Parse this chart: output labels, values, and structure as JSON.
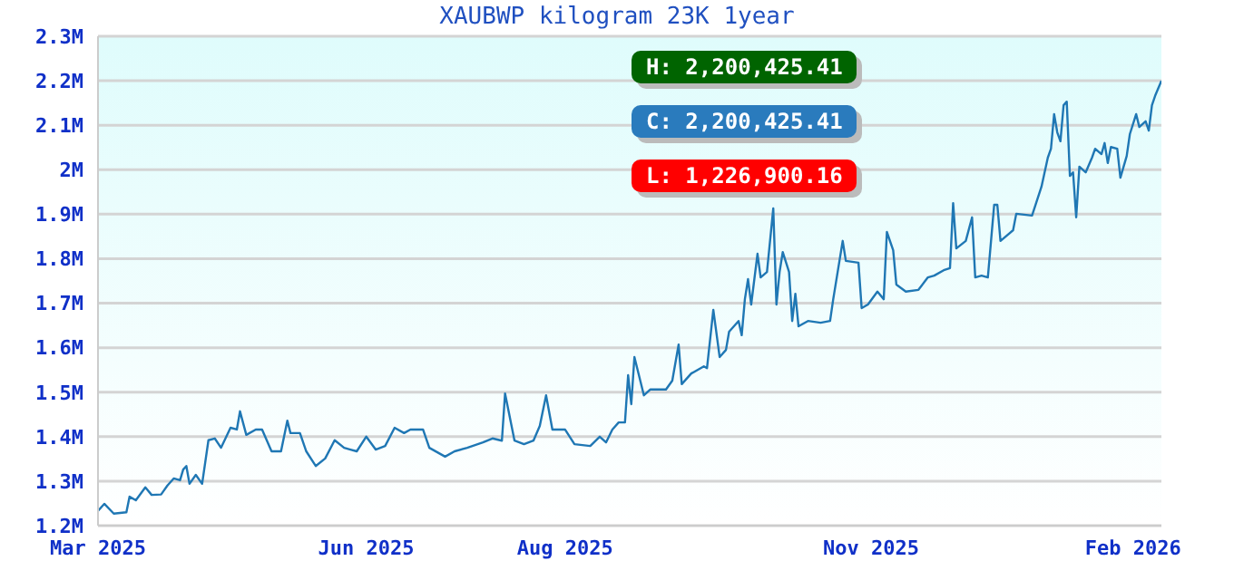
{
  "chart_data": {
    "type": "line",
    "title": "XAUBWP kilogram 23K 1year",
    "x": [
      "2025-03-10",
      "2025-03-12",
      "2025-03-15",
      "2025-03-19",
      "2025-03-20",
      "2025-03-22",
      "2025-03-25",
      "2025-03-27",
      "2025-03-30",
      "2025-04-01",
      "2025-04-03",
      "2025-04-05",
      "2025-04-06",
      "2025-04-07",
      "2025-04-08",
      "2025-04-10",
      "2025-04-12",
      "2025-04-14",
      "2025-04-16",
      "2025-04-18",
      "2025-04-21",
      "2025-04-23",
      "2025-04-24",
      "2025-04-26",
      "2025-04-29",
      "2025-05-01",
      "2025-05-04",
      "2025-05-07",
      "2025-05-09",
      "2025-05-10",
      "2025-05-13",
      "2025-05-15",
      "2025-05-18",
      "2025-05-21",
      "2025-05-24",
      "2025-05-27",
      "2025-05-29",
      "2025-05-31",
      "2025-06-03",
      "2025-06-06",
      "2025-06-09",
      "2025-06-12",
      "2025-06-15",
      "2025-06-17",
      "2025-06-21",
      "2025-06-23",
      "2025-06-28",
      "2025-07-01",
      "2025-07-05",
      "2025-07-10",
      "2025-07-13",
      "2025-07-16",
      "2025-07-17",
      "2025-07-20",
      "2025-07-23",
      "2025-07-26",
      "2025-07-28",
      "2025-07-30",
      "2025-08-01",
      "2025-08-05",
      "2025-08-08",
      "2025-08-13",
      "2025-08-16",
      "2025-08-18",
      "2025-08-20",
      "2025-08-22",
      "2025-08-24",
      "2025-08-25",
      "2025-08-26",
      "2025-08-27",
      "2025-08-30",
      "2025-09-01",
      "2025-09-06",
      "2025-09-08",
      "2025-09-10",
      "2025-09-11",
      "2025-09-14",
      "2025-09-18",
      "2025-09-19",
      "2025-09-21",
      "2025-09-23",
      "2025-09-25",
      "2025-09-26",
      "2025-09-29",
      "2025-09-30",
      "2025-10-01",
      "2025-10-02",
      "2025-10-03",
      "2025-10-05",
      "2025-10-06",
      "2025-10-08",
      "2025-10-10",
      "2025-10-11",
      "2025-10-12",
      "2025-10-13",
      "2025-10-15",
      "2025-10-16",
      "2025-10-17",
      "2025-10-18",
      "2025-10-21",
      "2025-10-25",
      "2025-10-28",
      "2025-10-29",
      "2025-11-01",
      "2025-11-02",
      "2025-11-06",
      "2025-11-07",
      "2025-11-09",
      "2025-11-12",
      "2025-11-14",
      "2025-11-15",
      "2025-11-17",
      "2025-11-18",
      "2025-11-21",
      "2025-11-25",
      "2025-11-28",
      "2025-11-30",
      "2025-12-03",
      "2025-12-05",
      "2025-12-06",
      "2025-12-07",
      "2025-12-10",
      "2025-12-12",
      "2025-12-13",
      "2025-12-15",
      "2025-12-17",
      "2025-12-19",
      "2025-12-20",
      "2025-12-21",
      "2025-12-25",
      "2025-12-26",
      "2025-12-31",
      "2026-01-03",
      "2026-01-05",
      "2026-01-06",
      "2026-01-07",
      "2026-01-08",
      "2026-01-09",
      "2026-01-10",
      "2026-01-11",
      "2026-01-12",
      "2026-01-13",
      "2026-01-14",
      "2026-01-15",
      "2026-01-17",
      "2026-01-19",
      "2026-01-20",
      "2026-01-22",
      "2026-01-23",
      "2026-01-24",
      "2026-01-25",
      "2026-01-27",
      "2026-01-28",
      "2026-01-30",
      "2026-01-31",
      "2026-02-02",
      "2026-02-03",
      "2026-02-05",
      "2026-02-06",
      "2026-02-07",
      "2026-02-08",
      "2026-02-10"
    ],
    "values": [
      1233000,
      1249000,
      1227000,
      1230000,
      1265000,
      1257000,
      1286000,
      1269000,
      1270000,
      1290000,
      1306000,
      1302000,
      1326000,
      1334000,
      1294000,
      1314000,
      1294000,
      1392000,
      1396000,
      1375000,
      1420000,
      1416000,
      1457000,
      1404000,
      1416000,
      1416000,
      1367000,
      1367000,
      1436000,
      1408000,
      1408000,
      1367000,
      1334000,
      1351000,
      1392000,
      1375000,
      1371000,
      1367000,
      1400000,
      1371000,
      1379000,
      1420000,
      1408000,
      1416000,
      1416000,
      1375000,
      1355000,
      1367000,
      1375000,
      1387000,
      1396000,
      1391000,
      1497000,
      1391000,
      1383000,
      1391000,
      1424000,
      1493000,
      1416000,
      1416000,
      1383000,
      1379000,
      1400000,
      1387000,
      1416000,
      1432000,
      1432000,
      1538000,
      1473000,
      1579000,
      1493000,
      1506000,
      1506000,
      1526000,
      1607000,
      1518000,
      1542000,
      1558000,
      1554000,
      1685000,
      1579000,
      1595000,
      1636000,
      1660000,
      1628000,
      1709000,
      1754000,
      1697000,
      1811000,
      1758000,
      1770000,
      1913000,
      1697000,
      1770000,
      1815000,
      1770000,
      1660000,
      1721000,
      1648000,
      1660000,
      1656000,
      1660000,
      1709000,
      1840000,
      1795000,
      1791000,
      1689000,
      1697000,
      1726000,
      1709000,
      1860000,
      1819000,
      1742000,
      1726000,
      1730000,
      1758000,
      1762000,
      1774000,
      1779000,
      1925000,
      1823000,
      1840000,
      1893000,
      1758000,
      1762000,
      1758000,
      1921000,
      1921000,
      1840000,
      1864000,
      1901000,
      1897000,
      1962000,
      2027000,
      2047000,
      2125000,
      2084000,
      2064000,
      2145000,
      2153000,
      1986000,
      1994000,
      1893000,
      2007000,
      1994000,
      2027000,
      2047000,
      2035000,
      2060000,
      2015000,
      2051000,
      2047000,
      1982000,
      2031000,
      2080000,
      2125000,
      2096000,
      2109000,
      2088000,
      2145000,
      2166000,
      2200000
    ],
    "color": "#1f77b4",
    "xlim": [
      "2025-03-10",
      "2026-02-10"
    ],
    "xticks": [
      {
        "value": "2025-03-10",
        "label": "Mar 2025"
      },
      {
        "value": "2025-06-03",
        "label": "Jun 2025"
      },
      {
        "value": "2025-08-05",
        "label": "Aug 2025"
      },
      {
        "value": "2025-11-10",
        "label": "Nov 2025"
      },
      {
        "value": "2026-02-01",
        "label": "Feb 2026"
      }
    ],
    "ylim": [
      1200000,
      2300000
    ],
    "yticks": [
      {
        "value": 1200000,
        "label": "1.2M"
      },
      {
        "value": 1300000,
        "label": "1.3M"
      },
      {
        "value": 1400000,
        "label": "1.4M"
      },
      {
        "value": 1500000,
        "label": "1.5M"
      },
      {
        "value": 1600000,
        "label": "1.6M"
      },
      {
        "value": 1700000,
        "label": "1.7M"
      },
      {
        "value": 1800000,
        "label": "1.8M"
      },
      {
        "value": 1900000,
        "label": "1.9M"
      },
      {
        "value": 2000000,
        "label": "2M"
      },
      {
        "value": 2100000,
        "label": "2.1M"
      },
      {
        "value": 2200000,
        "label": "2.2M"
      },
      {
        "value": 2300000,
        "label": "2.3M"
      }
    ],
    "grid": "y",
    "annotations": [
      "H: 2,200,425.41",
      "C: 2,200,425.41",
      "L: 1,226,900.16"
    ]
  }
}
